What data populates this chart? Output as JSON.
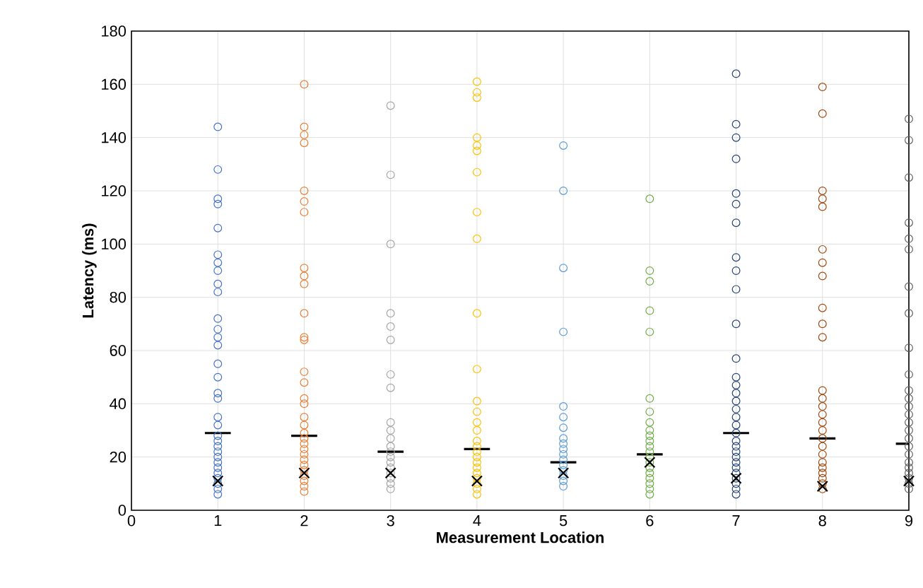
{
  "chart_data": {
    "type": "scatter",
    "xlabel": "Measurement Location",
    "ylabel": "Latency (ms)",
    "xlim": [
      0,
      9
    ],
    "xticks": [
      0,
      1,
      2,
      3,
      4,
      5,
      6,
      7,
      8,
      9
    ],
    "ylim": [
      0,
      180
    ],
    "yticks": [
      0,
      20,
      40,
      60,
      80,
      100,
      120,
      140,
      160,
      180
    ],
    "grid": true,
    "marker": "circle",
    "series": [
      {
        "color": "#4472c4",
        "x": [
          1,
          1,
          1,
          1,
          1,
          1,
          1,
          1,
          1,
          1,
          1,
          1,
          1,
          1,
          1,
          1,
          1,
          1,
          1,
          1,
          1,
          1,
          1,
          1,
          1,
          1,
          1,
          1,
          1,
          1,
          1,
          1
        ],
        "values": [
          144,
          128,
          117,
          115,
          106,
          96,
          93,
          90,
          85,
          82,
          72,
          68,
          65,
          62,
          55,
          50,
          44,
          42,
          35,
          32,
          28,
          26,
          24,
          22,
          20,
          18,
          16,
          14,
          12,
          10,
          8,
          6
        ]
      },
      {
        "color": "#ed7d31",
        "x": [
          2,
          2,
          2,
          2,
          2,
          2,
          2,
          2,
          2,
          2,
          2,
          2,
          2,
          2,
          2,
          2,
          2,
          2,
          2,
          2,
          2,
          2,
          2,
          2,
          2,
          2,
          2,
          2,
          2,
          2,
          2
        ],
        "values": [
          160,
          144,
          141,
          138,
          120,
          116,
          112,
          91,
          88,
          85,
          74,
          65,
          64,
          52,
          48,
          42,
          40,
          35,
          32,
          29,
          27,
          25,
          23,
          21,
          19,
          17,
          15,
          13,
          11,
          9,
          7
        ]
      },
      {
        "color": "#a5a5a5",
        "x": [
          3,
          3,
          3,
          3,
          3,
          3,
          3,
          3,
          3,
          3,
          3,
          3,
          3,
          3,
          3,
          3,
          3,
          3,
          3,
          3
        ],
        "values": [
          152,
          126,
          100,
          74,
          69,
          64,
          51,
          46,
          33,
          30,
          27,
          24,
          22,
          20,
          18,
          16,
          14,
          12,
          10,
          8
        ]
      },
      {
        "color": "#ffc000",
        "x": [
          4,
          4,
          4,
          4,
          4,
          4,
          4,
          4,
          4,
          4,
          4,
          4,
          4,
          4,
          4,
          4,
          4,
          4,
          4,
          4,
          4,
          4,
          4,
          4,
          4,
          4
        ],
        "values": [
          161,
          157,
          155,
          140,
          137,
          135,
          127,
          112,
          102,
          74,
          53,
          41,
          37,
          33,
          30,
          26,
          24,
          22,
          20,
          18,
          16,
          14,
          12,
          10,
          8,
          6
        ]
      },
      {
        "color": "#5b9bd5",
        "x": [
          5,
          5,
          5,
          5,
          5,
          5,
          5,
          5,
          5,
          5,
          5,
          5,
          5,
          5,
          5,
          5,
          5
        ],
        "values": [
          137,
          120,
          91,
          67,
          39,
          35,
          31,
          27,
          25,
          23,
          21,
          19,
          17,
          15,
          13,
          11,
          9
        ]
      },
      {
        "color": "#70ad47",
        "x": [
          6,
          6,
          6,
          6,
          6,
          6,
          6,
          6,
          6,
          6,
          6,
          6,
          6,
          6,
          6,
          6,
          6,
          6,
          6,
          6,
          6
        ],
        "values": [
          117,
          90,
          86,
          75,
          67,
          42,
          37,
          33,
          30,
          28,
          26,
          24,
          22,
          20,
          18,
          16,
          14,
          12,
          10,
          8,
          6
        ]
      },
      {
        "color": "#264478",
        "x": [
          7,
          7,
          7,
          7,
          7,
          7,
          7,
          7,
          7,
          7,
          7,
          7,
          7,
          7,
          7,
          7,
          7,
          7,
          7,
          7,
          7,
          7,
          7,
          7,
          7,
          7,
          7,
          7,
          7,
          7,
          7
        ],
        "values": [
          164,
          145,
          140,
          132,
          119,
          115,
          108,
          95,
          90,
          83,
          70,
          57,
          50,
          47,
          44,
          41,
          38,
          35,
          32,
          29,
          26,
          24,
          22,
          20,
          18,
          16,
          14,
          12,
          10,
          8,
          6
        ]
      },
      {
        "color": "#9e480e",
        "x": [
          8,
          8,
          8,
          8,
          8,
          8,
          8,
          8,
          8,
          8,
          8,
          8,
          8,
          8,
          8,
          8,
          8,
          8,
          8,
          8,
          8,
          8,
          8,
          8,
          8,
          8
        ],
        "values": [
          159,
          149,
          120,
          117,
          114,
          98,
          93,
          88,
          76,
          70,
          65,
          45,
          42,
          39,
          36,
          33,
          30,
          27,
          24,
          21,
          18,
          16,
          14,
          12,
          10,
          8
        ]
      },
      {
        "color": "#636363",
        "x": [
          9,
          9,
          9,
          9,
          9,
          9,
          9,
          9,
          9,
          9,
          9,
          9,
          9,
          9,
          9,
          9,
          9,
          9,
          9,
          9,
          9,
          9,
          9,
          9,
          9
        ],
        "values": [
          147,
          139,
          125,
          108,
          102,
          98,
          84,
          74,
          61,
          51,
          45,
          42,
          39,
          36,
          33,
          30,
          27,
          24,
          21,
          18,
          16,
          14,
          12,
          10,
          8
        ]
      },
      {
        "type": "line",
        "marker": "none",
        "color": "#000000",
        "x": [
          0.85,
          1.15,
          1.5,
          1.85,
          2.15,
          2.5,
          2.85,
          3.15,
          3.5,
          3.85,
          4.15,
          4.5,
          4.85,
          5.15,
          5.5,
          5.85,
          6.15,
          6.5,
          6.85,
          7.15,
          7.5,
          7.85,
          8.15,
          8.5,
          8.85,
          9
        ],
        "values": [
          29,
          29,
          null,
          28,
          28,
          null,
          22,
          22,
          null,
          23,
          23,
          null,
          18,
          18,
          null,
          21,
          21,
          null,
          29,
          29,
          null,
          27,
          27,
          null,
          25,
          25
        ]
      },
      {
        "color": "#000000",
        "marker": "cross",
        "x": [
          1,
          2,
          3,
          4,
          5,
          6,
          7,
          8,
          9
        ],
        "values": [
          11,
          14,
          14,
          11,
          14,
          18,
          12,
          9,
          11
        ]
      }
    ]
  }
}
